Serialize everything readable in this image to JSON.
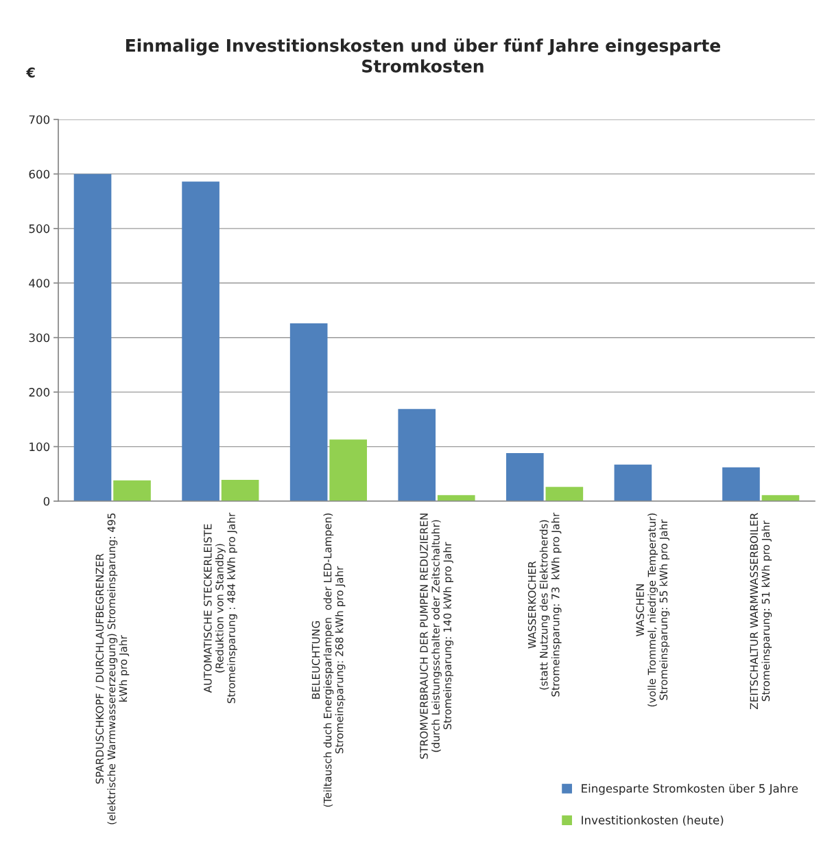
{
  "chart_data": {
    "type": "bar",
    "title": "Einmalige Investitionskosten und über fünf Jahre eingesparte\nStromkosten",
    "ylabel": "€",
    "categories": [
      "SPARDUSCHKOPF / DURCHLAUFBEGRENZER\n(elektrische Warmwassererzeugung) Stromeinsparung: 495\nkWh pro Jahr",
      "AUTOMATISCHE STECKERLEISTE\n(Reduktion von Standby)\nStromeinsparung : 484 kWh pro Jahr",
      "BELEUCHTUNG\n(Teiltausch duch Energiesparlampen  oder LED-Lampen)\nStromeinsparung: 268 kWh pro Jahr",
      "STROMVERBRAUCH DER PUMPEN REDUZIEREN\n(durch Leistungsschalter oder Zeitschaltuhr)\nStromeinsparung: 140 kWh pro Jahr",
      "WASSERKOCHER\n(statt Nutzung des Elektroherds)\nStromeinsparung: 73  kWh pro Jahr",
      "WASCHEN\n(volle Trommel, niedrige Temperatur)\nStromeinsparung: 55 kWh pro Jahr",
      "ZEITSCHALTUR WARMWASSERBOILER\nStromeinsparung: 51 kWh pro Jahr"
    ],
    "series": [
      {
        "name": "Eingesparte Stromkosten über 5 Jahre",
        "color": "#4f81bd",
        "values": [
          600,
          586,
          326,
          169,
          88,
          67,
          62
        ]
      },
      {
        "name": "Investitionkosten (heute)",
        "color": "#92d050",
        "values": [
          38,
          39,
          113,
          11,
          26,
          null,
          11
        ]
      }
    ],
    "ylim": [
      0,
      700
    ],
    "yticks": [
      0,
      100,
      200,
      300,
      400,
      500,
      600,
      700
    ],
    "grid": "y",
    "legend": "bottom right"
  }
}
